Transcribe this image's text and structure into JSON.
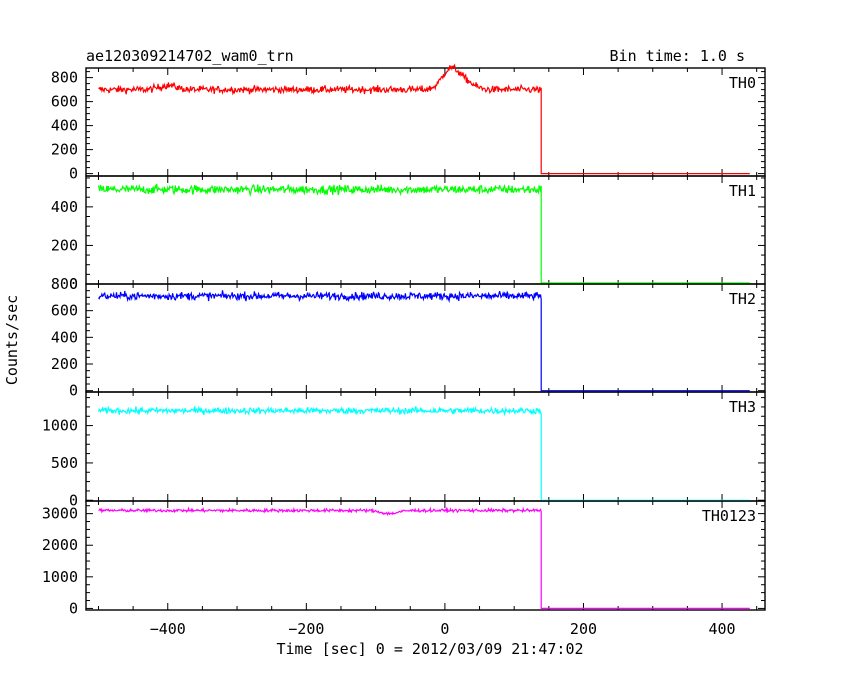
{
  "chart_data": {
    "type": "line",
    "title": "ae120309214702_wam0_trn",
    "subtitle": "Bin time: 1.0 s",
    "xlabel": "Time [sec] 0 = 2012/03/09 21:47:02",
    "ylabel": "Counts/sec",
    "xlim": [
      -518,
      462
    ],
    "x_ticks": [
      -400,
      -200,
      0,
      200,
      400
    ],
    "x_data_range": [
      -500,
      440
    ],
    "drop_time": 139,
    "grid": false,
    "panels": [
      {
        "name": "TH0",
        "color": "#ff0000",
        "ylim": [
          -20,
          880
        ],
        "y_ticks": [
          0,
          200,
          400,
          600,
          800
        ],
        "level_before": 700,
        "noise": 28,
        "level_after": 0,
        "features": [
          {
            "x": 8,
            "value": 870
          },
          {
            "x": 30,
            "value": 760
          },
          {
            "x": -400,
            "value": 735
          }
        ]
      },
      {
        "name": "TH1",
        "color": "#00ff00",
        "ylim": [
          0,
          560
        ],
        "y_ticks": [
          0,
          200,
          400
        ],
        "level_before": 490,
        "noise": 22,
        "level_after": 5,
        "features": []
      },
      {
        "name": "TH2",
        "color": "#0000ff",
        "ylim": [
          -10,
          800
        ],
        "y_ticks": [
          0,
          200,
          400,
          600,
          800
        ],
        "level_before": 710,
        "noise": 28,
        "level_after": 0,
        "features": []
      },
      {
        "name": "TH3",
        "color": "#00ffff",
        "ylim": [
          -10,
          1450
        ],
        "y_ticks": [
          0,
          500,
          1000
        ],
        "level_before": 1200,
        "noise": 40,
        "level_after": 0,
        "features": []
      },
      {
        "name": "TH0123",
        "color": "#ff00ff",
        "ylim": [
          -50,
          3400
        ],
        "y_ticks": [
          0,
          1000,
          2000,
          3000
        ],
        "level_before": 3100,
        "noise": 45,
        "level_after": 0,
        "features": [
          {
            "x": -80,
            "value": 3000
          },
          {
            "x": 100,
            "value": 3100
          }
        ]
      }
    ]
  }
}
